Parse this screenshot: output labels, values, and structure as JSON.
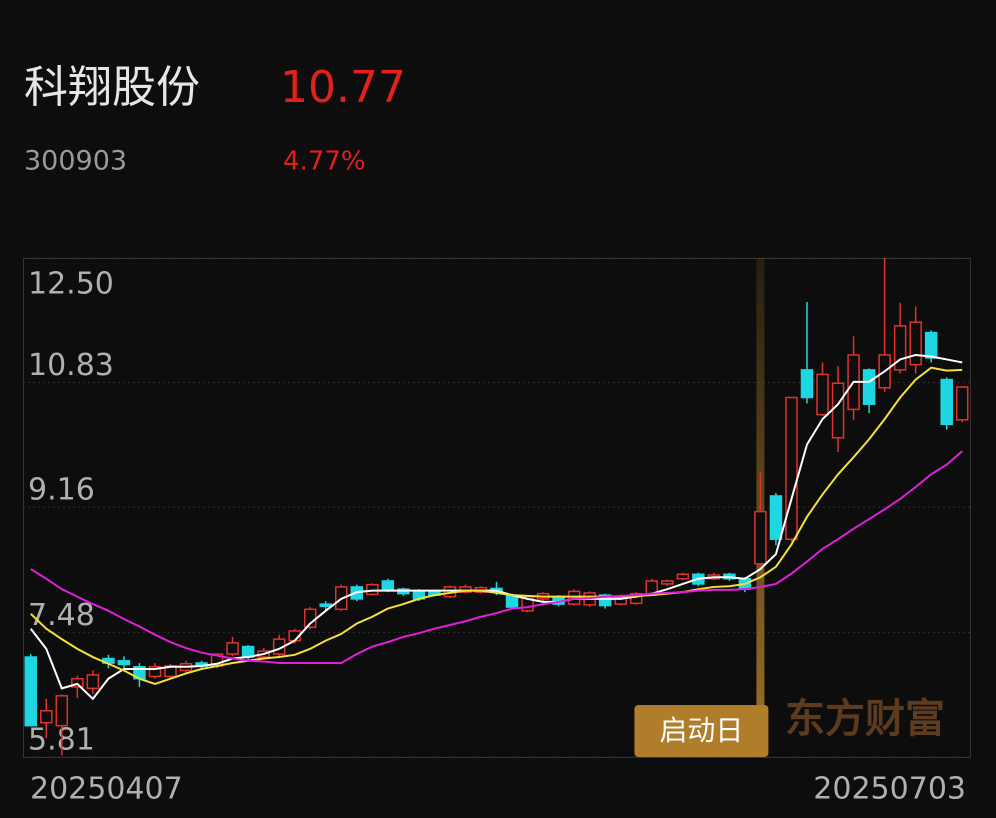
{
  "header": {
    "name": "科翔股份",
    "price": "10.77",
    "code": "300903",
    "change": "4.77%"
  },
  "chart_data": {
    "type": "candlestick",
    "categories": [
      "20250407",
      null,
      null,
      null,
      null,
      null,
      null,
      null,
      null,
      null,
      null,
      null,
      null,
      null,
      null,
      null,
      null,
      null,
      null,
      null,
      null,
      null,
      null,
      null,
      null,
      null,
      null,
      null,
      null,
      null,
      null,
      null,
      null,
      null,
      null,
      null,
      null,
      null,
      null,
      null,
      null,
      null,
      null,
      null,
      null,
      null,
      null,
      null,
      null,
      null,
      null,
      null,
      null,
      null,
      null,
      null,
      null,
      null,
      null,
      null,
      "20250703"
    ],
    "open": [
      7.15,
      6.27,
      6.23,
      6.75,
      6.73,
      7.13,
      7.1,
      7.02,
      6.89,
      6.89,
      6.97,
      7.07,
      7.03,
      7.19,
      7.29,
      7.15,
      7.19,
      7.37,
      7.55,
      7.86,
      7.79,
      8.09,
      7.99,
      8.17,
      8.06,
      8.03,
      8.03,
      7.96,
      8.02,
      8.02,
      8.07,
      7.98,
      7.77,
      7.93,
      7.96,
      7.86,
      7.85,
      7.98,
      7.86,
      7.87,
      8.0,
      8.13,
      8.2,
      8.26,
      8.2,
      8.26,
      8.2,
      8.4,
      9.31,
      8.73,
      11.0,
      10.4,
      10.09,
      10.47,
      11.0,
      10.76,
      11.0,
      11.07,
      11.5,
      10.87,
      10.33
    ],
    "high": [
      7.19,
      6.59,
      6.65,
      6.9,
      6.97,
      7.18,
      7.16,
      7.07,
      7.07,
      7.06,
      7.1,
      7.1,
      7.2,
      7.42,
      7.31,
      7.27,
      7.45,
      7.53,
      7.82,
      7.9,
      8.12,
      8.12,
      8.14,
      8.2,
      8.08,
      8.06,
      8.05,
      8.11,
      8.12,
      8.1,
      8.16,
      8.0,
      7.98,
      8.02,
      7.98,
      8.06,
      8.03,
      8.0,
      7.99,
      8.02,
      8.2,
      8.19,
      8.28,
      8.28,
      8.28,
      8.28,
      8.22,
      9.63,
      9.35,
      10.63,
      11.91,
      11.1,
      11.05,
      11.45,
      11.02,
      12.5,
      11.9,
      11.85,
      11.53,
      10.9,
      10.78
    ],
    "low": [
      6.23,
      6.06,
      5.83,
      6.6,
      6.65,
      7.0,
      7.0,
      6.75,
      6.86,
      6.86,
      6.93,
      6.98,
      7.0,
      7.16,
      7.1,
      7.12,
      7.16,
      7.33,
      7.52,
      7.78,
      7.77,
      7.9,
      7.97,
      8.02,
      7.97,
      7.9,
      7.96,
      7.94,
      8.0,
      8.0,
      7.98,
      7.8,
      7.75,
      7.9,
      7.83,
      7.84,
      7.82,
      7.8,
      7.84,
      7.85,
      7.98,
      8.1,
      8.18,
      8.1,
      8.18,
      8.17,
      8.02,
      8.38,
      8.65,
      8.7,
      10.55,
      10.38,
      9.9,
      10.33,
      10.42,
      10.7,
      10.95,
      10.95,
      11.1,
      10.2,
      10.3
    ],
    "close": [
      6.23,
      6.43,
      6.63,
      6.86,
      6.91,
      7.07,
      7.05,
      6.86,
      7.02,
      7.03,
      7.06,
      7.03,
      7.19,
      7.34,
      7.15,
      7.23,
      7.39,
      7.5,
      7.79,
      7.83,
      8.09,
      7.93,
      8.12,
      8.05,
      8.0,
      7.93,
      7.98,
      8.09,
      8.09,
      8.08,
      8.02,
      7.82,
      7.96,
      8.0,
      7.86,
      8.03,
      8.01,
      7.84,
      7.96,
      8.0,
      8.17,
      8.17,
      8.26,
      8.13,
      8.25,
      8.2,
      8.06,
      9.1,
      8.73,
      10.63,
      10.63,
      10.94,
      10.82,
      11.2,
      10.54,
      11.2,
      11.59,
      11.64,
      11.16,
      10.27,
      10.77
    ],
    "up_color": "#e0322d",
    "down_color": "#1fd6e3",
    "lines": [
      {
        "color": "#ffffff",
        "values": [
          7.53,
          7.26,
          6.73,
          6.79,
          6.59,
          6.86,
          6.99,
          6.99,
          6.99,
          7.02,
          7.02,
          7.03,
          7.06,
          7.13,
          7.15,
          7.19,
          7.26,
          7.37,
          7.6,
          7.77,
          7.93,
          8.02,
          8.04,
          8.04,
          8.04,
          8.04,
          8.04,
          8.04,
          8.04,
          8.04,
          8.04,
          7.98,
          7.93,
          7.89,
          7.89,
          7.93,
          7.93,
          7.93,
          7.93,
          7.96,
          8.0,
          8.06,
          8.13,
          8.2,
          8.22,
          8.22,
          8.2,
          8.33,
          8.53,
          9.27,
          10.0,
          10.34,
          10.54,
          10.84,
          10.84,
          10.98,
          11.14,
          11.2,
          11.18,
          11.14,
          11.1
        ]
      },
      {
        "color": "#f2e13a",
        "values": [
          7.73,
          7.53,
          7.39,
          7.26,
          7.15,
          7.06,
          6.97,
          6.86,
          6.79,
          6.86,
          6.93,
          6.99,
          7.03,
          7.07,
          7.1,
          7.13,
          7.15,
          7.18,
          7.26,
          7.37,
          7.46,
          7.6,
          7.69,
          7.8,
          7.86,
          7.93,
          7.98,
          8.01,
          8.04,
          8.04,
          8.01,
          7.98,
          7.97,
          7.96,
          7.96,
          7.96,
          7.96,
          7.96,
          7.96,
          7.97,
          7.98,
          8.0,
          8.02,
          8.06,
          8.09,
          8.1,
          8.13,
          8.22,
          8.36,
          8.66,
          9.03,
          9.33,
          9.6,
          9.83,
          10.07,
          10.34,
          10.63,
          10.87,
          11.03,
          10.99,
          11.0
        ]
      },
      {
        "color": "#e020d8",
        "values": [
          8.33,
          8.2,
          8.06,
          7.96,
          7.86,
          7.77,
          7.66,
          7.56,
          7.45,
          7.35,
          7.27,
          7.21,
          7.17,
          7.13,
          7.1,
          7.09,
          7.07,
          7.07,
          7.07,
          7.07,
          7.07,
          7.19,
          7.29,
          7.35,
          7.42,
          7.47,
          7.53,
          7.58,
          7.63,
          7.69,
          7.74,
          7.8,
          7.82,
          7.86,
          7.89,
          7.93,
          7.94,
          7.96,
          7.97,
          7.98,
          8.0,
          8.01,
          8.02,
          8.04,
          8.05,
          8.05,
          8.06,
          8.09,
          8.13,
          8.27,
          8.43,
          8.6,
          8.73,
          8.87,
          9.0,
          9.13,
          9.27,
          9.43,
          9.6,
          9.73,
          9.91
        ]
      }
    ],
    "ylim": [
      5.81,
      12.5
    ],
    "yticks": [
      {
        "value": 12.5,
        "label": "12.50"
      },
      10.83,
      9.16,
      7.48,
      5.81
    ],
    "grid": true,
    "annotation": {
      "label": "启动日",
      "category_index": 47
    },
    "watermark": "东方财富"
  }
}
